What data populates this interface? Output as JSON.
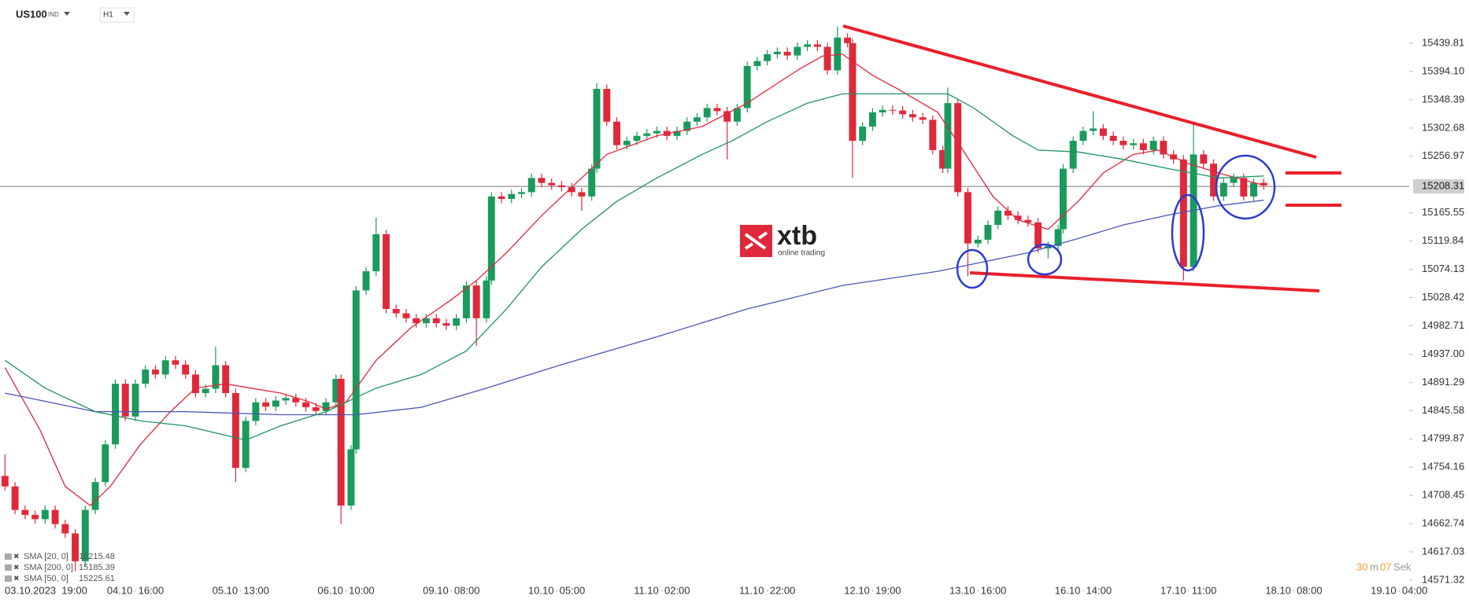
{
  "chart_data": {
    "type": "candlestick",
    "instrument": {
      "symbol": "US100",
      "market": "IND",
      "interval": "H1"
    },
    "logo": {
      "brand": "xtb",
      "tagline": "online trading"
    },
    "countdown": {
      "minutes": "30",
      "minutes_unit": "m",
      "seconds": "07",
      "seconds_unit": "Sek"
    },
    "up_color": "#1a9a5c",
    "down_color": "#e0283b",
    "last_price": 15208.31,
    "xlim": [
      -1,
      280
    ],
    "ylim": [
      14558.6,
      15490.7
    ],
    "grid": false,
    "xticks": [
      {
        "value": 5,
        "label": "03.10.2023  19:00"
      },
      {
        "value": 26,
        "label": "04.10  16:00"
      },
      {
        "value": 47,
        "label": "05.10  13:00"
      },
      {
        "value": 68,
        "label": "06.10  10:00"
      },
      {
        "value": 89,
        "label": "09.10  08:00"
      },
      {
        "value": 110,
        "label": "10.10  05:00"
      },
      {
        "value": 131,
        "label": "11.10  02:00"
      },
      {
        "value": 152,
        "label": "11.10  22:00"
      },
      {
        "value": 173,
        "label": "12.10  19:00"
      },
      {
        "value": 194,
        "label": "13.10  16:00"
      },
      {
        "value": 215,
        "label": "16.10  14:00"
      },
      {
        "value": 236,
        "label": "17.10  11:00"
      },
      {
        "value": 257,
        "label": "18.10  08:00"
      },
      {
        "value": 278,
        "label": "19.10  04:00"
      }
    ],
    "yticks": [
      15439.81,
      {
        "value": 15394.1,
        "label": "15394.10"
      },
      15348.39,
      15302.68,
      15256.97,
      15165.55,
      15119.84,
      15074.13,
      15028.42,
      14982.71,
      {
        "value": 14937,
        "label": "14937.00"
      },
      14891.29,
      14845.58,
      14799.87,
      14754.16,
      14708.45,
      14662.74,
      14617.03,
      14571.32
    ],
    "x": [
      0,
      2,
      4,
      6,
      8,
      10,
      12,
      14,
      16,
      18,
      20,
      22,
      24,
      26,
      28,
      30,
      32,
      34,
      36,
      38,
      40,
      42,
      44,
      46,
      48,
      50,
      52,
      54,
      56,
      58,
      60,
      62,
      64,
      66,
      67,
      69,
      70,
      72,
      74,
      76,
      78,
      80,
      82,
      84,
      86,
      88,
      90,
      92,
      94,
      96,
      97,
      99,
      101,
      103,
      105,
      107,
      109,
      111,
      113,
      115,
      117,
      118,
      120,
      122,
      124,
      126,
      128,
      130,
      132,
      134,
      136,
      138,
      140,
      142,
      144,
      146,
      148,
      150,
      152,
      154,
      156,
      158,
      160,
      162,
      164,
      166,
      168,
      169,
      171,
      173,
      175,
      177,
      179,
      181,
      183,
      185,
      187,
      188,
      190,
      192,
      194,
      196,
      198,
      200,
      202,
      204,
      206,
      208,
      210,
      211,
      213,
      215,
      217,
      219,
      221,
      223,
      225,
      227,
      229,
      231,
      233,
      235,
      237,
      239,
      241,
      243,
      245,
      247,
      249,
      251
    ],
    "open": [
      14740,
      14723,
      14685,
      14677,
      14670,
      14685,
      14662,
      14647,
      14602,
      14685,
      14730,
      14791,
      14889,
      14836,
      14889,
      14912,
      14904,
      14927,
      14920,
      14904,
      14874,
      14881,
      14919,
      14874,
      14753,
      14829,
      14859,
      14852,
      14862,
      14866,
      14859,
      14851,
      14845,
      14859,
      14897,
      14692,
      14783,
      15040,
      15071,
      15131,
      15010,
      15003,
      14995,
      14987,
      14995,
      14987,
      14983,
      14995,
      15048,
      14995,
      15056,
      15192,
      15188,
      15196,
      15199,
      15222,
      15214,
      15210,
      15207,
      15199,
      15192,
      15237,
      15366,
      15313,
      15275,
      15282,
      15290,
      15294,
      15298,
      15290,
      15298,
      15313,
      15320,
      15335,
      15330,
      15313,
      15335,
      15403,
      15411,
      15422,
      15426,
      15420,
      15434,
      15438,
      15434,
      15396,
      15449,
      15440,
      15282,
      15305,
      15328,
      15332,
      15331,
      15325,
      15320,
      15316,
      15267,
      15237,
      15343,
      15199,
      15116,
      15122,
      15146,
      15169,
      15161,
      15154,
      15150,
      15108,
      15112,
      15139,
      15237,
      15282,
      15298,
      15302,
      15290,
      15282,
      15275,
      15278,
      15267,
      15282,
      15260,
      15252,
      15078,
      15260,
      15245,
      15192,
      15214,
      15222,
      15192,
      15214
    ],
    "high": [
      14775,
      14730,
      14692,
      14684,
      14692,
      14692,
      14669,
      14654,
      14692,
      14737,
      14798,
      14896,
      14896,
      14896,
      14919,
      14919,
      14934,
      14934,
      14927,
      14911,
      14888,
      14949,
      14926,
      14881,
      14836,
      14866,
      14866,
      14869,
      14873,
      14873,
      14866,
      14858,
      14866,
      14904,
      14904,
      14790,
      15047,
      15078,
      15158,
      15138,
      15017,
      15010,
      15002,
      15002,
      15002,
      14994,
      15002,
      15055,
      15055,
      15063,
      15199,
      15199,
      15203,
      15206,
      15229,
      15229,
      15221,
      15217,
      15214,
      15206,
      15244,
      15375,
      15373,
      15320,
      15289,
      15297,
      15301,
      15305,
      15305,
      15305,
      15320,
      15327,
      15342,
      15342,
      15337,
      15342,
      15410,
      15418,
      15429,
      15433,
      15433,
      15441,
      15445,
      15445,
      15441,
      15467,
      15456,
      15447,
      15312,
      15335,
      15339,
      15339,
      15338,
      15332,
      15327,
      15323,
      15274,
      15368,
      15350,
      15206,
      15129,
      15153,
      15176,
      15176,
      15168,
      15161,
      15157,
      15119,
      15146,
      15244,
      15289,
      15305,
      15330,
      15309,
      15297,
      15289,
      15285,
      15285,
      15289,
      15289,
      15267,
      15259,
      15313,
      15267,
      15252,
      15221,
      15229,
      15229,
      15221,
      15221
    ],
    "low": [
      14716,
      14678,
      14670,
      14663,
      14663,
      14655,
      14640,
      14586,
      14595,
      14678,
      14723,
      14784,
      14829,
      14829,
      14882,
      14897,
      14897,
      14913,
      14897,
      14867,
      14867,
      14874,
      14867,
      14730,
      14746,
      14822,
      14845,
      14845,
      14855,
      14852,
      14844,
      14838,
      14838,
      14852,
      14662,
      14685,
      14776,
      15033,
      15064,
      15003,
      14996,
      14988,
      14980,
      14980,
      14980,
      14976,
      14976,
      14988,
      14950,
      14988,
      15049,
      15181,
      15181,
      15189,
      15192,
      15207,
      15203,
      15200,
      15192,
      15169,
      15185,
      15230,
      15306,
      15268,
      15268,
      15275,
      15283,
      15287,
      15283,
      15283,
      15291,
      15306,
      15313,
      15323,
      15252,
      15306,
      15328,
      15396,
      15404,
      15415,
      15413,
      15413,
      15427,
      15427,
      15389,
      15389,
      15433,
      15222,
      15275,
      15298,
      15321,
      15324,
      15318,
      15313,
      15309,
      15260,
      15230,
      15230,
      15192,
      15063,
      15109,
      15115,
      15139,
      15154,
      15147,
      15143,
      15101,
      15092,
      15105,
      15132,
      15230,
      15275,
      15291,
      15283,
      15275,
      15268,
      15268,
      15260,
      15260,
      15253,
      15245,
      15056,
      15071,
      15238,
      15185,
      15185,
      15207,
      15185,
      15185,
      15203
    ],
    "close": [
      14723,
      14685,
      14677,
      14670,
      14685,
      14662,
      14647,
      14602,
      14685,
      14730,
      14791,
      14889,
      14836,
      14889,
      14912,
      14904,
      14927,
      14920,
      14904,
      14874,
      14881,
      14919,
      14874,
      14753,
      14829,
      14859,
      14852,
      14862,
      14866,
      14859,
      14851,
      14845,
      14859,
      14897,
      14692,
      14783,
      15040,
      15071,
      15131,
      15010,
      15003,
      14995,
      14987,
      14995,
      14987,
      14983,
      14995,
      15048,
      14995,
      15056,
      15192,
      15188,
      15196,
      15199,
      15222,
      15214,
      15210,
      15207,
      15199,
      15192,
      15237,
      15366,
      15313,
      15275,
      15282,
      15290,
      15294,
      15298,
      15290,
      15298,
      15313,
      15320,
      15335,
      15330,
      15313,
      15335,
      15403,
      15411,
      15422,
      15426,
      15420,
      15434,
      15438,
      15434,
      15396,
      15449,
      15440,
      15282,
      15305,
      15328,
      15332,
      15331,
      15325,
      15320,
      15316,
      15267,
      15237,
      15343,
      15199,
      15116,
      15122,
      15146,
      15169,
      15161,
      15154,
      15150,
      15108,
      15112,
      15139,
      15237,
      15282,
      15298,
      15302,
      15290,
      15282,
      15275,
      15278,
      15267,
      15282,
      15260,
      15252,
      15078,
      15260,
      15245,
      15192,
      15214,
      15222,
      15192,
      15214,
      15210
    ],
    "sma": [
      {
        "name": "SMA [20, 0]",
        "legend_value": 15215.48,
        "color": "#e0283b",
        "x": [
          0,
          7,
          12,
          17,
          21,
          27,
          33,
          38,
          44,
          49,
          55,
          61,
          64,
          68,
          74,
          81,
          89,
          94,
          100,
          107,
          115,
          120,
          130,
          139,
          148,
          158,
          163,
          167,
          173,
          178,
          186,
          191,
          197,
          202,
          208,
          214,
          219,
          225,
          230,
          236,
          242,
          251
        ],
        "values": [
          14915,
          14814,
          14723,
          14692,
          14723,
          14791,
          14844,
          14882,
          14889,
          14882,
          14874,
          14859,
          14848,
          14859,
          14927,
          14980,
          15025,
          15056,
          15101,
          15161,
          15222,
          15260,
          15290,
          15305,
          15343,
          15396,
          15419,
          15422,
          15388,
          15366,
          15328,
          15267,
          15192,
          15154,
          15139,
          15184,
          15230,
          15260,
          15267,
          15245,
          15230,
          15210
        ]
      },
      {
        "name": "SMA [200, 0]",
        "legend_value": 15185.39,
        "color": "#4a55b8",
        "x": [
          0,
          18,
          36,
          55,
          70,
          83,
          96,
          111,
          130,
          148,
          167,
          186,
          195,
          204,
          214,
          223,
          232,
          242,
          251
        ],
        "values": [
          14874,
          14844,
          14844,
          14839,
          14839,
          14851,
          14882,
          14920,
          14965,
          15010,
          15048,
          15071,
          15086,
          15101,
          15124,
          15146,
          15162,
          15177,
          15186
        ]
      },
      {
        "name": "SMA [50, 0]",
        "legend_value": 15225.61,
        "color": "#1e9460",
        "x": [
          0,
          8,
          18,
          27,
          36,
          48,
          55,
          64,
          74,
          83,
          92,
          100,
          107,
          115,
          122,
          130,
          139,
          145,
          152,
          160,
          167,
          174,
          182,
          188,
          193,
          201,
          206,
          214,
          223,
          232,
          242,
          251
        ],
        "values": [
          14927,
          14882,
          14844,
          14829,
          14821,
          14798,
          14821,
          14844,
          14882,
          14904,
          14942,
          15010,
          15078,
          15139,
          15184,
          15222,
          15260,
          15282,
          15313,
          15343,
          15358,
          15358,
          15358,
          15358,
          15336,
          15290,
          15267,
          15264,
          15252,
          15237,
          15222,
          15225
        ]
      }
    ]
  }
}
